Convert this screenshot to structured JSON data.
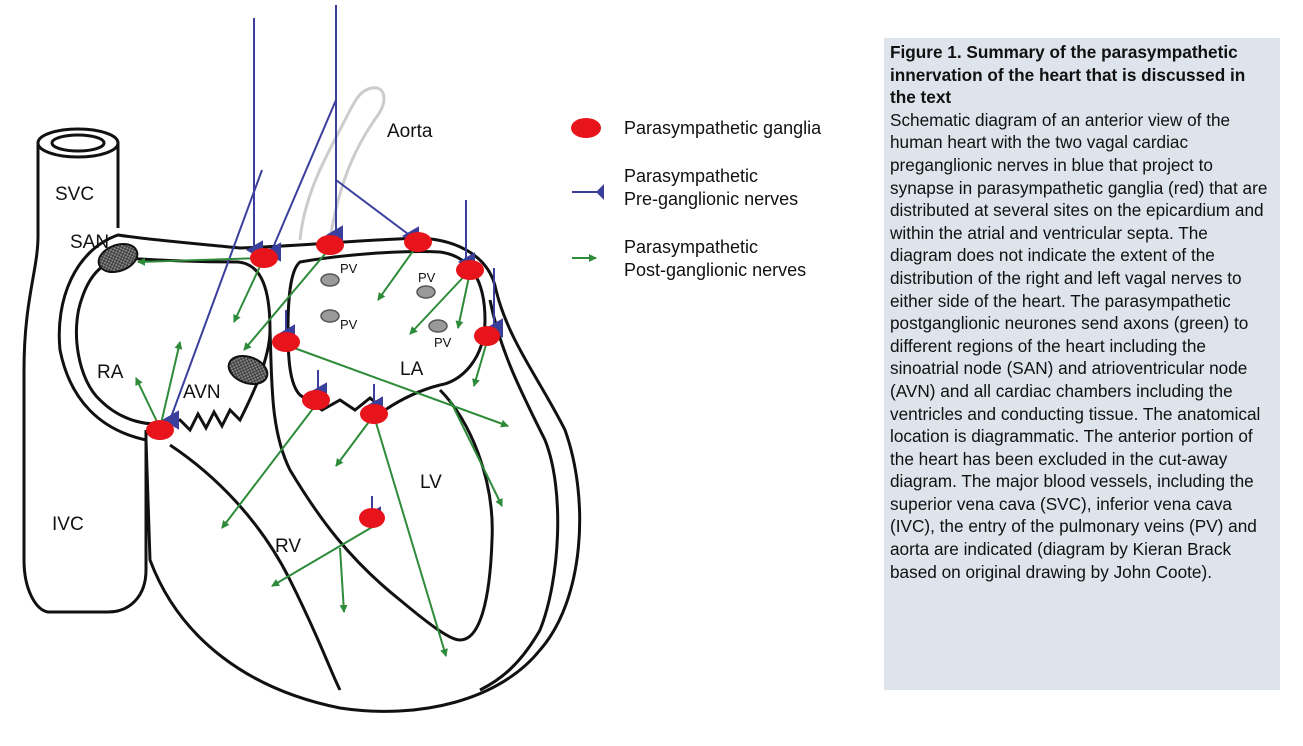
{
  "labels": {
    "aorta": "Aorta",
    "svc": "SVC",
    "san": "SAN",
    "ra": "RA",
    "avn": "AVN",
    "la": "LA",
    "lv": "LV",
    "rv": "RV",
    "ivc": "IVC",
    "pv": "PV"
  },
  "legend": {
    "ganglia": "Parasympathetic ganglia",
    "pre_line1": "Parasympathetic",
    "pre_line2": "Pre-ganglionic nerves",
    "post_line1": "Parasympathetic",
    "post_line2": "Post-ganglionic nerves"
  },
  "caption": {
    "title": "Figure 1.  Summary of the parasympathetic innervation of the heart that is discussed in the text",
    "body": "Schematic diagram of an anterior view of the human heart with the two vagal cardiac preganglionic nerves in blue that project to synapse in parasympathetic ganglia (red) that are distributed at several sites on the epicardium and within the atrial and ventricular septa. The diagram does not indicate the extent of the distribution of the right and left vagal nerves to either side of the heart. The parasympathetic postganglionic neurones send axons (green) to different regions of the heart including the sinoatrial node (SAN) and atrioventricular node (AVN) and all cardiac chambers including the ventricles and conducting tissue. The anatomical location is diagrammatic. The anterior portion of the heart has been excluded in the cut-away diagram. The major blood vessels, including the superior vena cava (SVC), inferior vena cava (IVC), the entry of the pulmonary veins (PV) and aorta are indicated (diagram by Kieran Brack based on original drawing by John Coote)."
  },
  "colors": {
    "ganglia": "#e8141c",
    "preganglionic": "#3a3f9c",
    "postganglionic": "#2e8b3a",
    "outline": "#111111",
    "aorta": "#cccccc",
    "caption_bg": "#dde4ec"
  }
}
